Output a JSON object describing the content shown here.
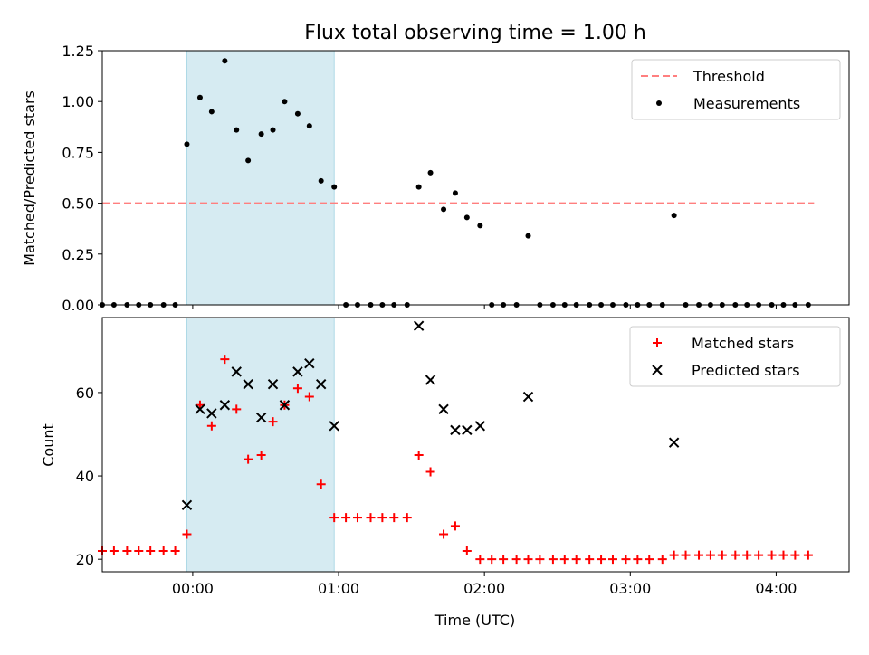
{
  "chart_data": [
    {
      "type": "scatter",
      "title": "Flux total observing time = 1.00 h",
      "xlabel": "",
      "ylabel": "Matched/Predicted stars",
      "xlim": [
        -0.62,
        4.5
      ],
      "ylim": [
        0,
        1.25
      ],
      "yticks": [
        0.0,
        0.25,
        0.5,
        0.75,
        1.0,
        1.25
      ],
      "ytick_labels": [
        "0.00",
        "0.25",
        "0.50",
        "0.75",
        "1.00",
        "1.25"
      ],
      "shaded_span": {
        "x0": -0.04,
        "x1": 0.97,
        "color": "#add8e6"
      },
      "legend_position": "top-right",
      "series": [
        {
          "name": "Threshold",
          "style": "dashed-line",
          "color": "#ff7f7f",
          "x": [
            -0.62,
            4.26
          ],
          "y": [
            0.5,
            0.5
          ]
        },
        {
          "name": "Measurements",
          "style": "dots",
          "color": "#000000",
          "x": [
            -0.62,
            -0.54,
            -0.45,
            -0.37,
            -0.29,
            -0.2,
            -0.12,
            -0.04,
            0.05,
            0.13,
            0.22,
            0.3,
            0.38,
            0.47,
            0.55,
            0.63,
            0.72,
            0.8,
            0.88,
            0.97,
            1.05,
            1.13,
            1.22,
            1.3,
            1.38,
            1.47,
            1.55,
            1.63,
            1.72,
            1.8,
            1.88,
            1.97,
            2.05,
            2.13,
            2.22,
            2.3,
            2.38,
            2.47,
            2.55,
            2.63,
            2.72,
            2.8,
            2.88,
            2.97,
            3.05,
            3.13,
            3.22,
            3.3,
            3.38,
            3.47,
            3.55,
            3.63,
            3.72,
            3.8,
            3.88,
            3.97,
            4.05,
            4.13,
            4.22
          ],
          "y": [
            0,
            0,
            0,
            0,
            0,
            0,
            0,
            0.79,
            1.02,
            0.95,
            1.2,
            0.86,
            0.71,
            0.84,
            0.86,
            1.0,
            0.94,
            0.88,
            0.61,
            0.58,
            0,
            0,
            0,
            0,
            0,
            0,
            0.58,
            0.65,
            0.47,
            0.55,
            0.43,
            0.39,
            0,
            0,
            0,
            0.34,
            0,
            0,
            0,
            0,
            0,
            0,
            0,
            0,
            0,
            0,
            0,
            0.44,
            0,
            0,
            0,
            0,
            0,
            0,
            0,
            0,
            0,
            0,
            0
          ]
        }
      ]
    },
    {
      "type": "scatter",
      "title": "",
      "xlabel": "Time (UTC)",
      "ylabel": "Count",
      "xlim": [
        -0.62,
        4.5
      ],
      "ylim": [
        17,
        78
      ],
      "yticks": [
        20,
        40,
        60
      ],
      "ytick_labels": [
        "20",
        "40",
        "60"
      ],
      "xticks": [
        0,
        1,
        2,
        3,
        4
      ],
      "xtick_labels": [
        "00:00",
        "01:00",
        "02:00",
        "03:00",
        "04:00"
      ],
      "shaded_span": {
        "x0": -0.04,
        "x1": 0.97,
        "color": "#add8e6"
      },
      "legend_position": "top-right",
      "series": [
        {
          "name": "Matched stars",
          "style": "plus",
          "color": "#ff0000",
          "x": [
            -0.62,
            -0.54,
            -0.45,
            -0.37,
            -0.29,
            -0.2,
            -0.12,
            -0.04,
            0.05,
            0.13,
            0.22,
            0.3,
            0.38,
            0.47,
            0.55,
            0.63,
            0.72,
            0.8,
            0.88,
            0.97,
            1.05,
            1.13,
            1.22,
            1.3,
            1.38,
            1.47,
            1.55,
            1.63,
            1.72,
            1.8,
            1.88,
            1.97,
            2.05,
            2.13,
            2.22,
            2.3,
            2.38,
            2.47,
            2.55,
            2.63,
            2.72,
            2.8,
            2.88,
            2.97,
            3.05,
            3.13,
            3.22,
            3.3,
            3.38,
            3.47,
            3.55,
            3.63,
            3.72,
            3.8,
            3.88,
            3.97,
            4.05,
            4.13,
            4.22
          ],
          "y": [
            22,
            22,
            22,
            22,
            22,
            22,
            22,
            26,
            57,
            52,
            68,
            56,
            44,
            45,
            53,
            57,
            61,
            59,
            38,
            30,
            30,
            30,
            30,
            30,
            30,
            30,
            45,
            41,
            26,
            28,
            22,
            20,
            20,
            20,
            20,
            20,
            20,
            20,
            20,
            20,
            20,
            20,
            20,
            20,
            20,
            20,
            20,
            21,
            21,
            21,
            21,
            21,
            21,
            21,
            21,
            21,
            21,
            21,
            21
          ]
        },
        {
          "name": "Predicted stars",
          "style": "x",
          "color": "#000000",
          "x": [
            -0.04,
            0.05,
            0.13,
            0.22,
            0.3,
            0.38,
            0.47,
            0.55,
            0.63,
            0.72,
            0.8,
            0.88,
            0.97,
            1.55,
            1.63,
            1.72,
            1.8,
            1.88,
            1.97,
            2.3,
            3.3
          ],
          "y": [
            33,
            56,
            55,
            57,
            65,
            62,
            54,
            62,
            57,
            65,
            67,
            62,
            52,
            76,
            63,
            56,
            51,
            51,
            52,
            59,
            48
          ]
        }
      ]
    }
  ]
}
